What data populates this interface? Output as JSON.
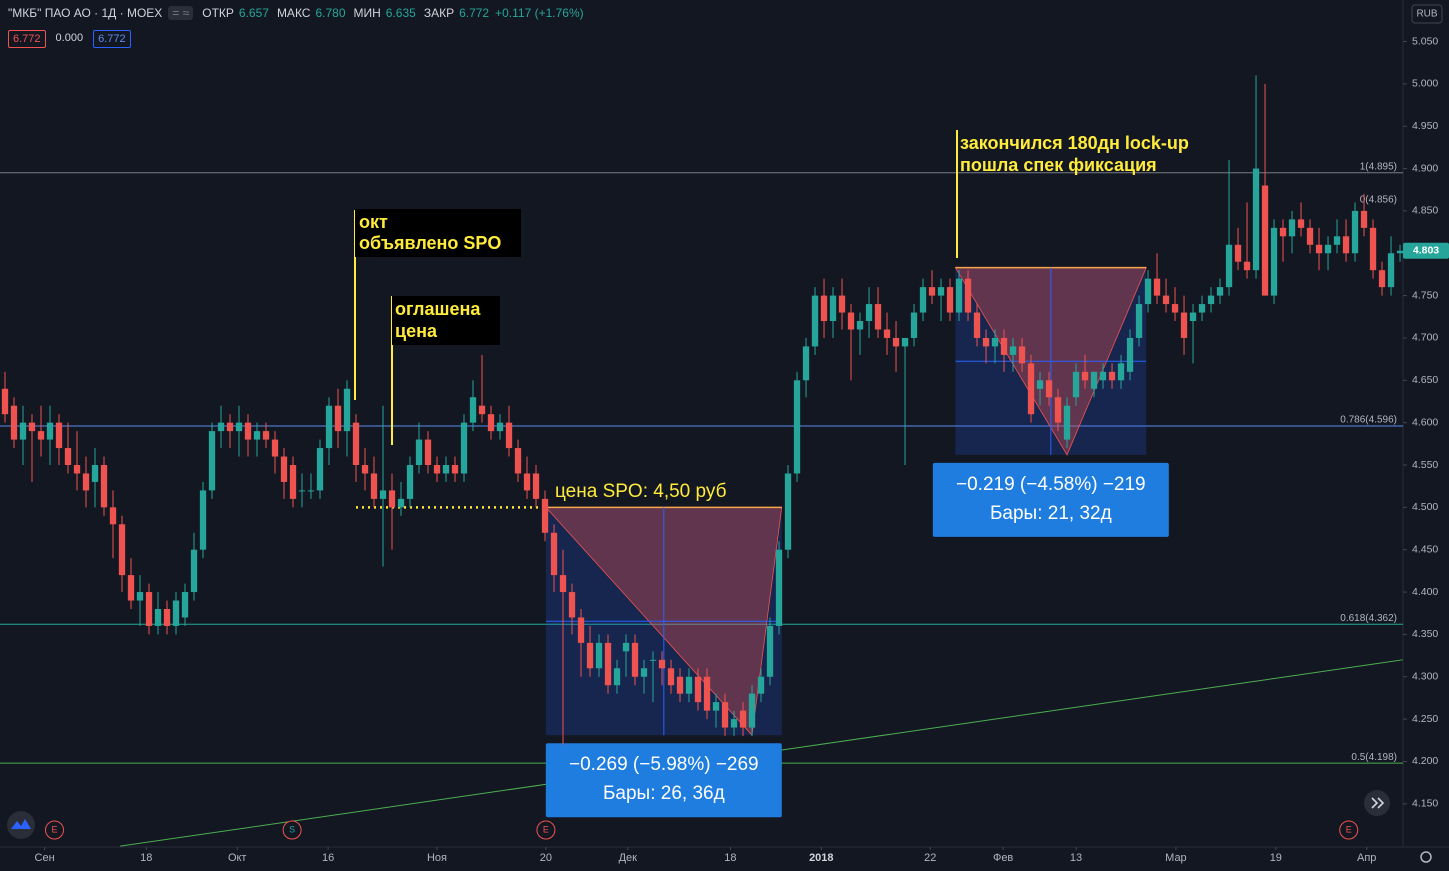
{
  "header": {
    "symbol": "\"МКБ\" ПАО АО · 1Д · MOEX",
    "fields": [
      {
        "label": "ОТКР",
        "value": "6.657"
      },
      {
        "label": "МАКС",
        "value": "6.780"
      },
      {
        "label": "МИН",
        "value": "6.635"
      },
      {
        "label": "ЗАКР",
        "value": "6.772"
      }
    ],
    "change": "+0.117 (+1.76%)",
    "boxes": [
      "6.772",
      "0.000",
      "6.772"
    ],
    "currency": "RUB"
  },
  "annotations": {
    "spo": [
      "окт",
      "объявлено SPO"
    ],
    "price": [
      "оглашена",
      "цена"
    ],
    "spo_price": "цена SPO: 4,50 руб",
    "lockup": [
      "закончился 180дн lock-up",
      "пошла спек фиксация"
    ]
  },
  "chart_data": {
    "type": "candlestick",
    "up_color": "#26a69a",
    "down_color": "#ef5350",
    "ylim": [
      4.099,
      5.099
    ],
    "xlim": [
      -0.556,
      155.33
    ],
    "yticks": [
      {
        "value": 5.05,
        "label": "5.050"
      },
      {
        "value": 5.0,
        "label": "5.000"
      },
      {
        "value": 4.95,
        "label": "4.950"
      },
      {
        "value": 4.9,
        "label": "4.900"
      },
      {
        "value": 4.85,
        "label": "4.850"
      },
      {
        "value": 4.8,
        "label": "4.800"
      },
      {
        "value": 4.75,
        "label": "4.750"
      },
      {
        "value": 4.7,
        "label": "4.700"
      },
      {
        "value": 4.65,
        "label": "4.650"
      },
      {
        "value": 4.6,
        "label": "4.600"
      },
      {
        "value": 4.55,
        "label": "4.550"
      },
      {
        "value": 4.5,
        "label": "4.500"
      },
      {
        "value": 4.45,
        "label": "4.450"
      },
      {
        "value": 4.4,
        "label": "4.400"
      },
      {
        "value": 4.35,
        "label": "4.350"
      },
      {
        "value": 4.3,
        "label": "4.300"
      },
      {
        "value": 4.25,
        "label": "4.250"
      },
      {
        "value": 4.2,
        "label": "4.200"
      },
      {
        "value": 4.15,
        "label": "4.150"
      }
    ],
    "xticks": [
      {
        "value": 4.4,
        "label": "Сен"
      },
      {
        "value": 15.7,
        "label": "18"
      },
      {
        "value": 25.8,
        "label": "Окт"
      },
      {
        "value": 35.9,
        "label": "16"
      },
      {
        "value": 48,
        "label": "Ноя"
      },
      {
        "value": 60.1,
        "label": "20"
      },
      {
        "value": 69.2,
        "label": "Дек"
      },
      {
        "value": 80.6,
        "label": "18"
      },
      {
        "value": 90.7,
        "label": "2018"
      },
      {
        "value": 102.8,
        "label": "22"
      },
      {
        "value": 110.9,
        "label": "Фев"
      },
      {
        "value": 119,
        "label": "13"
      },
      {
        "value": 130.1,
        "label": "Мар"
      },
      {
        "value": 141.2,
        "label": "19"
      },
      {
        "value": 151.3,
        "label": "Апр"
      }
    ],
    "last_price": {
      "value": 4.803,
      "label": "4.803"
    },
    "fib": [
      {
        "value": 4.895,
        "label": "1(4.895)",
        "color": "#787b86",
        "line": true
      },
      {
        "value": 4.856,
        "label": "0(4.856)",
        "color": "#787b86",
        "line": false
      },
      {
        "value": 4.596,
        "label": "0.786(4.596)",
        "color": "#5b8def",
        "line": true
      },
      {
        "value": 4.362,
        "label": "0.618(4.362)",
        "color": "#22ab94",
        "line": true
      },
      {
        "value": 4.198,
        "label": "0.5(4.198)",
        "color": "#4caf50",
        "line": true
      }
    ],
    "trendline": {
      "x": [
        12.8,
        155.3
      ],
      "y": [
        4.1,
        4.32
      ],
      "color": "#4caf50"
    },
    "spo_line": {
      "x": [
        39,
        59.4
      ],
      "y": 4.5
    },
    "measures": [
      {
        "x": [
          60.1,
          86.3
        ],
        "y": [
          4.5,
          4.231
        ],
        "low_x": 83,
        "lines": [
          "−0.269 (−5.98%) −269",
          "Бары: 26, 36д"
        ]
      },
      {
        "x": [
          105.6,
          126.8
        ],
        "y": [
          4.783,
          4.562
        ],
        "low_x": 118,
        "lines": [
          "−0.219 (−4.58%) −219",
          "Бары: 21, 32д"
        ]
      }
    ],
    "events": [
      {
        "x": 5.5,
        "label": "E"
      },
      {
        "x": 31.9,
        "label": "S"
      },
      {
        "x": 60.1,
        "label": "E"
      },
      {
        "x": 149.3,
        "label": "E"
      }
    ],
    "ohlc": [
      [
        4.64,
        4.66,
        4.6,
        4.61
      ],
      [
        4.62,
        4.63,
        4.57,
        4.58
      ],
      [
        4.58,
        4.62,
        4.55,
        4.6
      ],
      [
        4.6,
        4.61,
        4.53,
        4.59
      ],
      [
        4.59,
        4.62,
        4.56,
        4.58
      ],
      [
        4.58,
        4.62,
        4.55,
        4.6
      ],
      [
        4.6,
        4.61,
        4.55,
        4.57
      ],
      [
        4.57,
        4.6,
        4.54,
        4.55
      ],
      [
        4.55,
        4.59,
        4.52,
        4.54
      ],
      [
        4.54,
        4.56,
        4.5,
        4.52
      ],
      [
        4.53,
        4.57,
        4.5,
        4.55
      ],
      [
        4.55,
        4.56,
        4.49,
        4.5
      ],
      [
        4.5,
        4.52,
        4.44,
        4.48
      ],
      [
        4.48,
        4.49,
        4.4,
        4.42
      ],
      [
        4.42,
        4.44,
        4.38,
        4.39
      ],
      [
        4.39,
        4.42,
        4.36,
        4.4
      ],
      [
        4.4,
        4.41,
        4.35,
        4.36
      ],
      [
        4.36,
        4.4,
        4.35,
        4.38
      ],
      [
        4.38,
        4.39,
        4.35,
        4.36
      ],
      [
        4.36,
        4.4,
        4.35,
        4.39
      ],
      [
        4.37,
        4.41,
        4.36,
        4.4
      ],
      [
        4.4,
        4.47,
        4.39,
        4.45
      ],
      [
        4.45,
        4.53,
        4.44,
        4.52
      ],
      [
        4.52,
        4.6,
        4.51,
        4.59
      ],
      [
        4.59,
        4.62,
        4.57,
        4.6
      ],
      [
        4.6,
        4.61,
        4.57,
        4.59
      ],
      [
        4.59,
        4.62,
        4.56,
        4.6
      ],
      [
        4.6,
        4.61,
        4.56,
        4.58
      ],
      [
        4.58,
        4.6,
        4.56,
        4.59
      ],
      [
        4.59,
        4.6,
        4.57,
        4.58
      ],
      [
        4.58,
        4.59,
        4.54,
        4.56
      ],
      [
        4.56,
        4.57,
        4.51,
        4.53
      ],
      [
        4.55,
        4.56,
        4.5,
        4.51
      ],
      [
        4.52,
        4.54,
        4.5,
        4.52
      ],
      [
        4.52,
        4.54,
        4.51,
        4.52
      ],
      [
        4.52,
        4.58,
        4.51,
        4.57
      ],
      [
        4.57,
        4.63,
        4.55,
        4.62
      ],
      [
        4.62,
        4.64,
        4.57,
        4.59
      ],
      [
        4.59,
        4.65,
        4.56,
        4.64
      ],
      [
        4.6,
        4.61,
        4.53,
        4.55
      ],
      [
        4.55,
        4.57,
        4.52,
        4.54
      ],
      [
        4.54,
        4.56,
        4.5,
        4.51
      ],
      [
        4.51,
        4.62,
        4.43,
        4.52
      ],
      [
        4.52,
        4.54,
        4.45,
        4.5
      ],
      [
        4.5,
        4.53,
        4.49,
        4.51
      ],
      [
        4.51,
        4.56,
        4.5,
        4.55
      ],
      [
        4.55,
        4.6,
        4.54,
        4.58
      ],
      [
        4.58,
        4.59,
        4.54,
        4.55
      ],
      [
        4.55,
        4.56,
        4.53,
        4.54
      ],
      [
        4.54,
        4.56,
        4.53,
        4.55
      ],
      [
        4.55,
        4.56,
        4.53,
        4.54
      ],
      [
        4.54,
        4.61,
        4.53,
        4.6
      ],
      [
        4.6,
        4.65,
        4.59,
        4.63
      ],
      [
        4.62,
        4.68,
        4.6,
        4.61
      ],
      [
        4.61,
        4.62,
        4.58,
        4.59
      ],
      [
        4.59,
        4.61,
        4.58,
        4.6
      ],
      [
        4.6,
        4.62,
        4.56,
        4.57
      ],
      [
        4.57,
        4.58,
        4.53,
        4.54
      ],
      [
        4.54,
        4.56,
        4.51,
        4.52
      ],
      [
        4.54,
        4.55,
        4.5,
        4.51
      ],
      [
        4.51,
        4.52,
        4.46,
        4.47
      ],
      [
        4.47,
        4.48,
        4.4,
        4.42
      ],
      [
        4.42,
        4.45,
        4.22,
        4.4
      ],
      [
        4.4,
        4.41,
        4.35,
        4.37
      ],
      [
        4.37,
        4.38,
        4.3,
        4.34
      ],
      [
        4.34,
        4.36,
        4.3,
        4.31
      ],
      [
        4.31,
        4.35,
        4.3,
        4.34
      ],
      [
        4.34,
        4.35,
        4.28,
        4.29
      ],
      [
        4.29,
        4.32,
        4.28,
        4.31
      ],
      [
        4.33,
        4.35,
        4.3,
        4.34
      ],
      [
        4.34,
        4.35,
        4.29,
        4.3
      ],
      [
        4.3,
        4.32,
        4.28,
        4.31
      ],
      [
        4.32,
        4.33,
        4.27,
        4.32
      ],
      [
        4.32,
        4.33,
        4.29,
        4.31
      ],
      [
        4.31,
        4.32,
        4.28,
        4.29
      ],
      [
        4.3,
        4.31,
        4.27,
        4.28
      ],
      [
        4.28,
        4.31,
        4.27,
        4.3
      ],
      [
        4.3,
        4.31,
        4.26,
        4.27
      ],
      [
        4.3,
        4.31,
        4.25,
        4.26
      ],
      [
        4.26,
        4.28,
        4.24,
        4.27
      ],
      [
        4.27,
        4.28,
        4.23,
        4.24
      ],
      [
        4.24,
        4.26,
        4.23,
        4.25
      ],
      [
        4.26,
        4.27,
        4.23,
        4.24
      ],
      [
        4.24,
        4.29,
        4.23,
        4.28
      ],
      [
        4.28,
        4.31,
        4.27,
        4.3
      ],
      [
        4.3,
        4.37,
        4.29,
        4.36
      ],
      [
        4.36,
        4.46,
        4.35,
        4.45
      ],
      [
        4.45,
        4.55,
        4.44,
        4.54
      ],
      [
        4.54,
        4.66,
        4.53,
        4.65
      ],
      [
        4.65,
        4.7,
        4.63,
        4.69
      ],
      [
        4.69,
        4.76,
        4.68,
        4.75
      ],
      [
        4.75,
        4.77,
        4.7,
        4.72
      ],
      [
        4.72,
        4.76,
        4.7,
        4.75
      ],
      [
        4.75,
        4.77,
        4.71,
        4.73
      ],
      [
        4.73,
        4.74,
        4.65,
        4.71
      ],
      [
        4.71,
        4.73,
        4.68,
        4.72
      ],
      [
        4.72,
        4.76,
        4.7,
        4.74
      ],
      [
        4.74,
        4.76,
        4.7,
        4.71
      ],
      [
        4.71,
        4.73,
        4.68,
        4.7
      ],
      [
        4.7,
        4.72,
        4.66,
        4.69
      ],
      [
        4.69,
        4.7,
        4.55,
        4.7
      ],
      [
        4.7,
        4.74,
        4.69,
        4.73
      ],
      [
        4.73,
        4.77,
        4.72,
        4.76
      ],
      [
        4.76,
        4.78,
        4.74,
        4.75
      ],
      [
        4.75,
        4.77,
        4.72,
        4.76
      ],
      [
        4.76,
        4.77,
        4.72,
        4.73
      ],
      [
        4.73,
        4.78,
        4.72,
        4.77
      ],
      [
        4.77,
        4.78,
        4.72,
        4.73
      ],
      [
        4.73,
        4.74,
        4.69,
        4.7
      ],
      [
        4.7,
        4.71,
        4.67,
        4.69
      ],
      [
        4.69,
        4.71,
        4.67,
        4.7
      ],
      [
        4.7,
        4.71,
        4.66,
        4.68
      ],
      [
        4.68,
        4.7,
        4.66,
        4.69
      ],
      [
        4.69,
        4.7,
        4.66,
        4.67
      ],
      [
        4.67,
        4.68,
        4.6,
        4.61
      ],
      [
        4.64,
        4.66,
        4.62,
        4.65
      ],
      [
        4.65,
        4.66,
        4.62,
        4.63
      ],
      [
        4.63,
        4.64,
        4.59,
        4.6
      ],
      [
        4.58,
        4.63,
        4.57,
        4.62
      ],
      [
        4.63,
        4.67,
        4.62,
        4.66
      ],
      [
        4.66,
        4.68,
        4.64,
        4.65
      ],
      [
        4.64,
        4.66,
        4.63,
        4.66
      ],
      [
        4.65,
        4.67,
        4.64,
        4.66
      ],
      [
        4.66,
        4.67,
        4.64,
        4.65
      ],
      [
        4.65,
        4.68,
        4.64,
        4.67
      ],
      [
        4.66,
        4.71,
        4.65,
        4.7
      ],
      [
        4.7,
        4.75,
        4.69,
        4.74
      ],
      [
        4.74,
        4.78,
        4.73,
        4.77
      ],
      [
        4.77,
        4.8,
        4.74,
        4.75
      ],
      [
        4.75,
        4.77,
        4.73,
        4.74
      ],
      [
        4.74,
        4.76,
        4.72,
        4.73
      ],
      [
        4.73,
        4.75,
        4.68,
        4.7
      ],
      [
        4.72,
        4.74,
        4.67,
        4.73
      ],
      [
        4.73,
        4.75,
        4.72,
        4.74
      ],
      [
        4.74,
        4.76,
        4.73,
        4.75
      ],
      [
        4.75,
        4.77,
        4.74,
        4.76
      ],
      [
        4.76,
        4.91,
        4.75,
        4.81
      ],
      [
        4.81,
        4.83,
        4.78,
        4.79
      ],
      [
        4.79,
        4.86,
        4.77,
        4.78
      ],
      [
        4.78,
        5.01,
        4.77,
        4.9
      ],
      [
        4.88,
        5.0,
        4.75,
        4.75
      ],
      [
        4.75,
        4.84,
        4.74,
        4.83
      ],
      [
        4.83,
        4.84,
        4.79,
        4.82
      ],
      [
        4.82,
        4.85,
        4.8,
        4.84
      ],
      [
        4.84,
        4.86,
        4.82,
        4.83
      ],
      [
        4.83,
        4.84,
        4.8,
        4.81
      ],
      [
        4.81,
        4.83,
        4.78,
        4.8
      ],
      [
        4.8,
        4.82,
        4.78,
        4.81
      ],
      [
        4.81,
        4.84,
        4.8,
        4.82
      ],
      [
        4.82,
        4.84,
        4.79,
        4.8
      ],
      [
        4.8,
        4.86,
        4.79,
        4.85
      ],
      [
        4.85,
        4.87,
        4.82,
        4.83
      ],
      [
        4.83,
        4.84,
        4.77,
        4.78
      ],
      [
        4.78,
        4.79,
        4.75,
        4.76
      ],
      [
        4.76,
        4.82,
        4.75,
        4.8
      ],
      [
        4.8,
        4.81,
        4.79,
        4.803
      ]
    ]
  }
}
